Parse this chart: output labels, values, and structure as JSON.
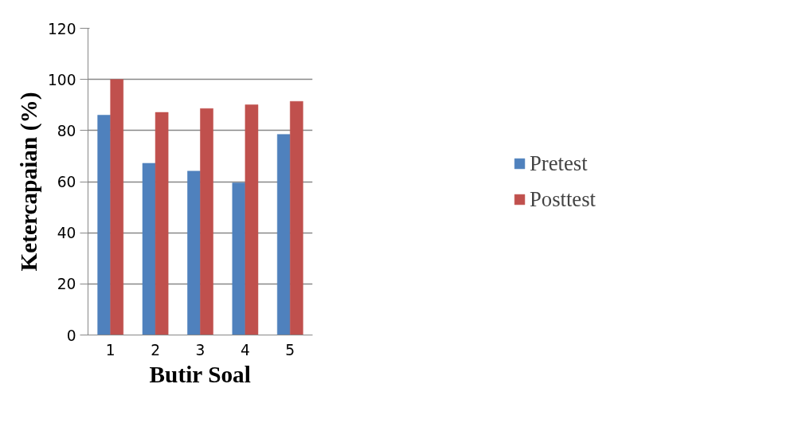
{
  "chart_data": {
    "type": "bar",
    "xlabel": "Butir Soal",
    "ylabel": "Ketercapaian (%)",
    "categories": [
      "1",
      "2",
      "3",
      "4",
      "5"
    ],
    "series": [
      {
        "name": "Pretest",
        "color": "#4f81bd",
        "values": [
          86.0,
          67.2,
          64.1,
          59.5,
          78.5
        ]
      },
      {
        "name": "Posttest",
        "color": "#c0504d",
        "values": [
          100,
          87.1,
          88.6,
          90.1,
          91.4
        ]
      }
    ],
    "ylim": [
      0,
      120
    ],
    "yticks": [
      0,
      20,
      40,
      60,
      80,
      100,
      120
    ],
    "grid": "y",
    "legend": "right"
  }
}
